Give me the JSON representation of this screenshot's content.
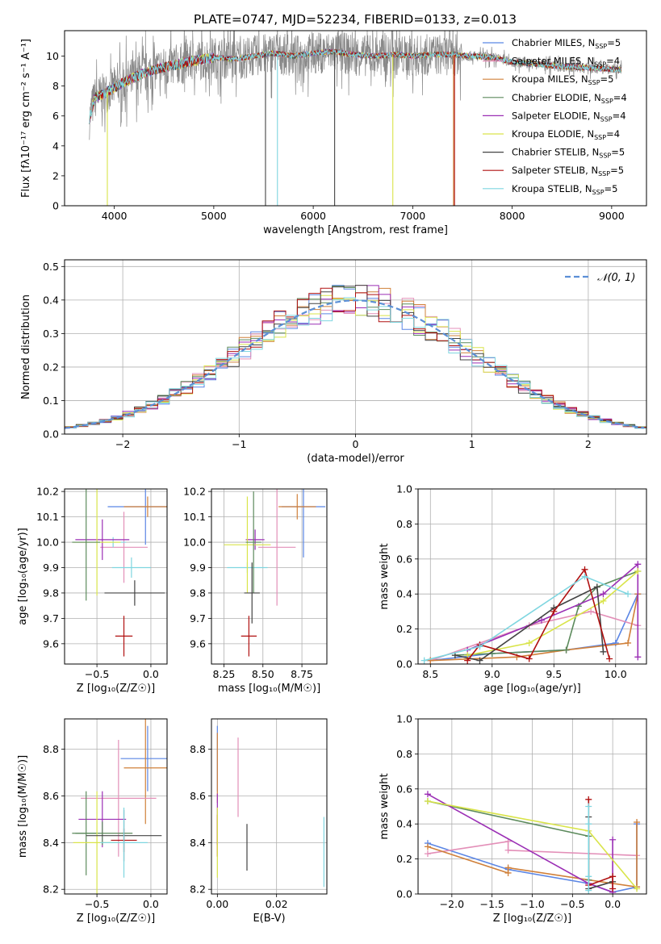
{
  "figure_title": "PLATE=0747, MJD=52234, FIBERID=0133, z=0.013",
  "colors": {
    "chabrier_miles": "#5b86e5",
    "salpeter_miles": "#e38fb8",
    "kroupa_miles": "#d0803a",
    "chabrier_elodie": "#5c8a5c",
    "salpeter_elodie": "#9b2fb5",
    "kroupa_elodie": "#d9e44a",
    "chabrier_stelib": "#444444",
    "salpeter_stelib": "#b01010",
    "kroupa_stelib": "#7fd6e0",
    "normal": "#5b8fd6",
    "grid": "#b0b0b0"
  },
  "chart_data": [
    {
      "id": "spectrum",
      "type": "line",
      "xlabel": "wavelength [Angstrom, rest frame]",
      "ylabel": "Flux [fλ10⁻¹⁷ erg cm⁻² s⁻¹ A⁻¹]",
      "xlim": [
        3500,
        9350
      ],
      "ylim": [
        0,
        11.7
      ],
      "xticks": [
        4000,
        5000,
        6000,
        7000,
        8000,
        9000
      ],
      "yticks": [
        0,
        2,
        4,
        6,
        8,
        10
      ],
      "grid": false,
      "legend_position": "top-right",
      "legend": [
        {
          "label": "Chabrier MILES, N",
          "sub": "SSP",
          "tail": "=5",
          "color": "#5b86e5"
        },
        {
          "label": "Salpeter MILES, N",
          "sub": "SSP",
          "tail": "=4",
          "color": "#e38fb8"
        },
        {
          "label": "Kroupa MILES, N",
          "sub": "SSP",
          "tail": "=5",
          "color": "#d0803a"
        },
        {
          "label": "Chabrier ELODIE, N",
          "sub": "SSP",
          "tail": "=4",
          "color": "#5c8a5c"
        },
        {
          "label": "Salpeter ELODIE, N",
          "sub": "SSP",
          "tail": "=4",
          "color": "#9b2fb5"
        },
        {
          "label": "Kroupa ELODIE, N",
          "sub": "SSP",
          "tail": "=4",
          "color": "#d9e44a"
        },
        {
          "label": "Chabrier STELIB, N",
          "sub": "SSP",
          "tail": "=5",
          "color": "#444444"
        },
        {
          "label": "Salpeter STELIB, N",
          "sub": "SSP",
          "tail": "=5",
          "color": "#b01010"
        },
        {
          "label": "Kroupa STELIB, N",
          "sub": "SSP",
          "tail": "=5",
          "color": "#7fd6e0"
        }
      ],
      "continuum_x": [
        3750,
        3800,
        3900,
        4000,
        4200,
        4400,
        4600,
        4800,
        5000,
        5200,
        5400,
        5600,
        5800,
        6000,
        6200,
        6400,
        6600,
        6800,
        7000,
        7200,
        7400,
        7600,
        7800,
        8000,
        8200,
        8500,
        8800,
        9100
      ],
      "continuum_y": [
        5.8,
        7.2,
        7.5,
        7.9,
        8.6,
        9.1,
        9.4,
        9.7,
        9.9,
        9.8,
        10.0,
        10.2,
        10.0,
        10.2,
        10.3,
        10.1,
        10.0,
        10.1,
        10.0,
        10.1,
        10.1,
        10.0,
        9.9,
        9.6,
        9.5,
        9.3,
        9.2,
        9.1
      ],
      "drop_lines": [
        {
          "x": 3930,
          "y": 0.0,
          "color": "#d9e44a"
        },
        {
          "x": 5520,
          "y": 0.0,
          "color": "#444444"
        },
        {
          "x": 5640,
          "y": 0.0,
          "color": "#7fd6e0"
        },
        {
          "x": 6215,
          "y": 0.0,
          "color": "#444444"
        },
        {
          "x": 6800,
          "y": 0.0,
          "color": "#d9e44a"
        },
        {
          "x": 7410,
          "y": 0.0,
          "color": "#d0803a"
        },
        {
          "x": 7420,
          "y": 0.0,
          "color": "#b01010"
        }
      ]
    },
    {
      "id": "residuals",
      "type": "histogram",
      "xlabel": "(data-model)/error",
      "ylabel": "Normed distribution",
      "xlim": [
        -2.5,
        2.5
      ],
      "ylim": [
        0,
        0.52
      ],
      "xticks": [
        -2,
        -1,
        0,
        1,
        2
      ],
      "xtick_labels": [
        "−2",
        "−1",
        "0",
        "1",
        "2"
      ],
      "yticks": [
        0.0,
        0.1,
        0.2,
        0.3,
        0.4,
        0.5
      ],
      "ytick_labels": [
        "0.0",
        "0.1",
        "0.2",
        "0.3",
        "0.4",
        "0.5"
      ],
      "grid": true,
      "legend_position": "top-right",
      "normal_label": "𝒩(0, 1)",
      "bin_width": 0.1
    },
    {
      "id": "age_vs_Z",
      "type": "scatter",
      "xlabel": "Z [log₁₀(Z/Z☉)]",
      "ylabel": "age  [log₁₀(age/yr)]",
      "xlim": [
        -0.8,
        0.15
      ],
      "ylim": [
        9.52,
        10.21
      ],
      "xticks": [
        -0.5,
        0.0
      ],
      "xtick_labels": [
        "−0.5",
        "0.0"
      ],
      "yticks": [
        9.6,
        9.7,
        9.8,
        9.9,
        10.0,
        10.1,
        10.2
      ],
      "ytick_labels": [
        "9.6",
        "9.7",
        "9.8",
        "9.9",
        "10.0",
        "10.1",
        "10.2"
      ],
      "grid": true,
      "points": [
        {
          "x": -0.05,
          "y": 10.14,
          "xerr": 0.35,
          "yerr": 0.15,
          "color": "#5b86e5"
        },
        {
          "x": -0.03,
          "y": 10.14,
          "xerr": 0.22,
          "yerr": 0.04,
          "color": "#d0803a"
        },
        {
          "x": -0.25,
          "y": 9.98,
          "xerr": 0.22,
          "yerr": 0.14,
          "color": "#e38fb8"
        },
        {
          "x": -0.35,
          "y": 10.0,
          "xerr": 0.12,
          "yerr": 0.02,
          "color": "#7fd6e0"
        },
        {
          "x": -0.45,
          "y": 10.01,
          "xerr": 0.25,
          "yerr": 0.08,
          "color": "#9b2fb5"
        },
        {
          "x": -0.5,
          "y": 10.0,
          "xerr": 0.22,
          "yerr": 0.21,
          "color": "#d9e44a"
        },
        {
          "x": -0.6,
          "y": 10.0,
          "xerr": 0.13,
          "yerr": 0.23,
          "color": "#5c8a5c"
        },
        {
          "x": -0.18,
          "y": 9.9,
          "xerr": 0.18,
          "yerr": 0.04,
          "color": "#7fd6e0"
        },
        {
          "x": -0.15,
          "y": 9.8,
          "xerr": 0.28,
          "yerr": 0.05,
          "color": "#444444"
        },
        {
          "x": -0.25,
          "y": 9.63,
          "xerr": 0.08,
          "yerr": 0.08,
          "color": "#b01010"
        }
      ]
    },
    {
      "id": "age_vs_mass",
      "type": "scatter",
      "xlabel": "mass [log₁₀(M/M☉)]",
      "ylabel": "",
      "xlim": [
        8.17,
        8.91
      ],
      "ylim": [
        9.52,
        10.21
      ],
      "xticks": [
        8.25,
        8.5,
        8.75
      ],
      "xtick_labels": [
        "8.25",
        "8.50",
        "8.75"
      ],
      "yticks": [
        9.6,
        9.7,
        9.8,
        9.9,
        10.0,
        10.1,
        10.2
      ],
      "ytick_labels": [
        "9.6",
        "9.7",
        "9.8",
        "9.9",
        "10.0",
        "10.1",
        "10.2"
      ],
      "grid": true,
      "points": [
        {
          "x": 8.76,
          "y": 10.14,
          "xerr": 0.14,
          "yerr": 0.2,
          "color": "#5b86e5"
        },
        {
          "x": 8.72,
          "y": 10.14,
          "xerr": 0.12,
          "yerr": 0.05,
          "color": "#d0803a"
        },
        {
          "x": 8.59,
          "y": 9.98,
          "xerr": 0.12,
          "yerr": 0.23,
          "color": "#e38fb8"
        },
        {
          "x": 8.4,
          "y": 9.9,
          "xerr": 0.13,
          "yerr": 0.02,
          "color": "#7fd6e0"
        },
        {
          "x": 8.45,
          "y": 10.01,
          "xerr": 0.06,
          "yerr": 0.04,
          "color": "#9b2fb5"
        },
        {
          "x": 8.4,
          "y": 9.99,
          "xerr": 0.15,
          "yerr": 0.19,
          "color": "#d9e44a"
        },
        {
          "x": 8.44,
          "y": 10.0,
          "xerr": 0.05,
          "yerr": 0.2,
          "color": "#5c8a5c"
        },
        {
          "x": 8.43,
          "y": 9.8,
          "xerr": 0.05,
          "yerr": 0.12,
          "color": "#444444"
        },
        {
          "x": 8.41,
          "y": 9.63,
          "xerr": 0.05,
          "yerr": 0.08,
          "color": "#b01010"
        }
      ]
    },
    {
      "id": "mass_weight_vs_age",
      "type": "line",
      "xlabel": "age  [log₁₀(age/yr)]",
      "ylabel": "mass weight",
      "xlim": [
        8.4,
        10.25
      ],
      "ylim": [
        0,
        1.0
      ],
      "xticks": [
        8.5,
        9.0,
        9.5,
        10.0
      ],
      "xtick_labels": [
        "8.5",
        "9.0",
        "9.5",
        "10.0"
      ],
      "yticks": [
        0.0,
        0.2,
        0.4,
        0.6,
        0.8,
        1.0
      ],
      "ytick_labels": [
        "0.0",
        "0.2",
        "0.4",
        "0.6",
        "0.8",
        "1.0"
      ],
      "grid": true,
      "series": [
        {
          "color": "#5b86e5",
          "x": [
            8.5,
            9.0,
            9.6,
            10.0,
            10.18
          ],
          "y": [
            0.02,
            0.06,
            0.08,
            0.12,
            0.4
          ]
        },
        {
          "color": "#e38fb8",
          "x": [
            8.5,
            9.3,
            9.8,
            10.18
          ],
          "y": [
            0.02,
            0.22,
            0.3,
            0.22
          ]
        },
        {
          "color": "#d0803a",
          "x": [
            8.5,
            9.2,
            9.6,
            10.1,
            10.18
          ],
          "y": [
            0.02,
            0.04,
            0.08,
            0.12,
            0.4
          ]
        },
        {
          "color": "#5c8a5c",
          "x": [
            8.7,
            9.0,
            9.6,
            9.7,
            9.85,
            10.18
          ],
          "y": [
            0.05,
            0.06,
            0.08,
            0.33,
            0.44,
            0.53
          ]
        },
        {
          "color": "#9b2fb5",
          "x": [
            8.8,
            9.4,
            9.9,
            10.18,
            10.18
          ],
          "y": [
            0.08,
            0.25,
            0.4,
            0.57,
            0.04
          ]
        },
        {
          "color": "#d9e44a",
          "x": [
            8.8,
            9.3,
            9.9,
            10.18
          ],
          "y": [
            0.05,
            0.12,
            0.36,
            0.53
          ]
        },
        {
          "color": "#444444",
          "x": [
            8.7,
            8.9,
            9.5,
            9.85,
            9.9
          ],
          "y": [
            0.05,
            0.02,
            0.32,
            0.44,
            0.07
          ]
        },
        {
          "color": "#b01010",
          "x": [
            8.8,
            8.9,
            9.3,
            9.5,
            9.75,
            9.95
          ],
          "y": [
            0.02,
            0.11,
            0.03,
            0.3,
            0.54,
            0.03
          ]
        },
        {
          "color": "#7fd6e0",
          "x": [
            8.45,
            8.9,
            9.75,
            10.1
          ],
          "y": [
            0.02,
            0.1,
            0.5,
            0.4
          ]
        }
      ]
    },
    {
      "id": "mass_vs_Z",
      "type": "scatter",
      "xlabel": "Z [log₁₀(Z/Z☉)]",
      "ylabel": "mass [log₁₀(M/M☉)]",
      "xlim": [
        -0.8,
        0.15
      ],
      "ylim": [
        8.18,
        8.93
      ],
      "xticks": [
        -0.5,
        0.0
      ],
      "xtick_labels": [
        "−0.5",
        "0.0"
      ],
      "yticks": [
        8.2,
        8.4,
        8.6,
        8.8
      ],
      "ytick_labels": [
        "8.2",
        "8.4",
        "8.6",
        "8.8"
      ],
      "grid": true,
      "points": [
        {
          "x": -0.03,
          "y": 8.76,
          "xerr": 0.25,
          "yerr": 0.14,
          "color": "#5b86e5"
        },
        {
          "x": -0.05,
          "y": 8.72,
          "xerr": 0.2,
          "yerr": 0.24,
          "color": "#d0803a"
        },
        {
          "x": -0.3,
          "y": 8.59,
          "xerr": 0.35,
          "yerr": 0.25,
          "color": "#e38fb8"
        },
        {
          "x": -0.45,
          "y": 8.5,
          "xerr": 0.22,
          "yerr": 0.12,
          "color": "#9b2fb5"
        },
        {
          "x": -0.45,
          "y": 8.44,
          "xerr": 0.28,
          "yerr": 0.05,
          "color": "#5c8a5c"
        },
        {
          "x": -0.6,
          "y": 8.44,
          "xerr": 0.1,
          "yerr": 0.18,
          "color": "#5c8a5c"
        },
        {
          "x": -0.5,
          "y": 8.4,
          "xerr": 0.22,
          "yerr": 0.22,
          "color": "#d9e44a"
        },
        {
          "x": -0.25,
          "y": 8.43,
          "xerr": 0.35,
          "yerr": 0.11,
          "color": "#444444"
        },
        {
          "x": -0.25,
          "y": 8.41,
          "xerr": 0.12,
          "yerr": 0.05,
          "color": "#b01010"
        },
        {
          "x": -0.25,
          "y": 8.4,
          "xerr": 0.22,
          "yerr": 0.15,
          "color": "#7fd6e0"
        }
      ]
    },
    {
      "id": "mass_vs_ebv",
      "type": "scatter",
      "xlabel": "E(B-V)",
      "ylabel": "",
      "xlim": [
        -0.002,
        0.037
      ],
      "ylim": [
        8.18,
        8.93
      ],
      "xticks": [
        0.0,
        0.02
      ],
      "xtick_labels": [
        "0.00",
        "0.02"
      ],
      "yticks": [
        8.2,
        8.4,
        8.6,
        8.8
      ],
      "ytick_labels": [
        "8.2",
        "8.4",
        "8.6",
        "8.8"
      ],
      "grid": true,
      "points": [
        {
          "x": 0.0,
          "y": 8.76,
          "xerr": 0,
          "yerr": 0.14,
          "color": "#5b86e5"
        },
        {
          "x": 0.0,
          "y": 8.72,
          "xerr": 0,
          "yerr": 0.15,
          "color": "#d0803a"
        },
        {
          "x": 0.0,
          "y": 8.5,
          "xerr": 0,
          "yerr": 0.11,
          "color": "#9b2fb5"
        },
        {
          "x": 0.0,
          "y": 8.43,
          "xerr": 0,
          "yerr": 0.09,
          "color": "#b01010"
        },
        {
          "x": 0.0,
          "y": 8.4,
          "xerr": 0,
          "yerr": 0.15,
          "color": "#d9e44a"
        },
        {
          "x": 0.007,
          "y": 8.68,
          "xerr": 0,
          "yerr": 0.17,
          "color": "#e38fb8"
        },
        {
          "x": 0.01,
          "y": 8.38,
          "xerr": 0,
          "yerr": 0.1,
          "color": "#444444"
        },
        {
          "x": 0.036,
          "y": 8.36,
          "xerr": 0,
          "yerr": 0.15,
          "color": "#7fd6e0"
        }
      ]
    },
    {
      "id": "mass_weight_vs_Z",
      "type": "line",
      "xlabel": "Z [log₁₀(Z/Z☉)]",
      "ylabel": "mass weight",
      "xlim": [
        -2.42,
        0.42
      ],
      "ylim": [
        0,
        1.0
      ],
      "xticks": [
        -2.0,
        -1.5,
        -1.0,
        -0.5,
        0.0
      ],
      "xtick_labels": [
        "−2.0",
        "−1.5",
        "−1.0",
        "−0.5",
        "0.0"
      ],
      "yticks": [
        0.0,
        0.2,
        0.4,
        0.6,
        0.8,
        1.0
      ],
      "ytick_labels": [
        "0.0",
        "0.2",
        "0.4",
        "0.6",
        "0.8",
        "1.0"
      ],
      "grid": true,
      "series": [
        {
          "color": "#5b86e5",
          "x": [
            -2.3,
            -1.3,
            -0.3,
            0.0,
            0.3,
            0.3
          ],
          "y": [
            0.29,
            0.14,
            0.06,
            0.01,
            0.04,
            0.4
          ]
        },
        {
          "color": "#e38fb8",
          "x": [
            -2.3,
            -1.3,
            -1.3,
            0.3
          ],
          "y": [
            0.23,
            0.3,
            0.25,
            0.22
          ]
        },
        {
          "color": "#d0803a",
          "x": [
            -2.3,
            -1.3,
            -1.3,
            -0.3,
            0.3,
            0.3
          ],
          "y": [
            0.27,
            0.12,
            0.15,
            0.08,
            0.04,
            0.41
          ]
        },
        {
          "color": "#5c8a5c",
          "x": [
            -2.3,
            -0.3,
            -0.3
          ],
          "y": [
            0.53,
            0.33,
            0.08
          ]
        },
        {
          "color": "#9b2fb5",
          "x": [
            -2.3,
            -0.3,
            0.0,
            0.0
          ],
          "y": [
            0.57,
            0.06,
            0.01,
            0.31
          ]
        },
        {
          "color": "#d9e44a",
          "x": [
            -2.3,
            -0.3,
            0.3
          ],
          "y": [
            0.53,
            0.36,
            0.03
          ]
        },
        {
          "color": "#444444",
          "x": [
            -0.3,
            -0.3,
            0.0
          ],
          "y": [
            0.44,
            0.03,
            0.07
          ]
        },
        {
          "color": "#b01010",
          "x": [
            -0.3,
            -0.3,
            0.0,
            0.0
          ],
          "y": [
            0.54,
            0.05,
            0.1,
            0.03
          ]
        },
        {
          "color": "#7fd6e0",
          "x": [
            -0.3,
            -0.3,
            -0.3,
            -0.3
          ],
          "y": [
            0.5,
            0.02,
            0.1,
            0.4
          ]
        }
      ]
    }
  ]
}
